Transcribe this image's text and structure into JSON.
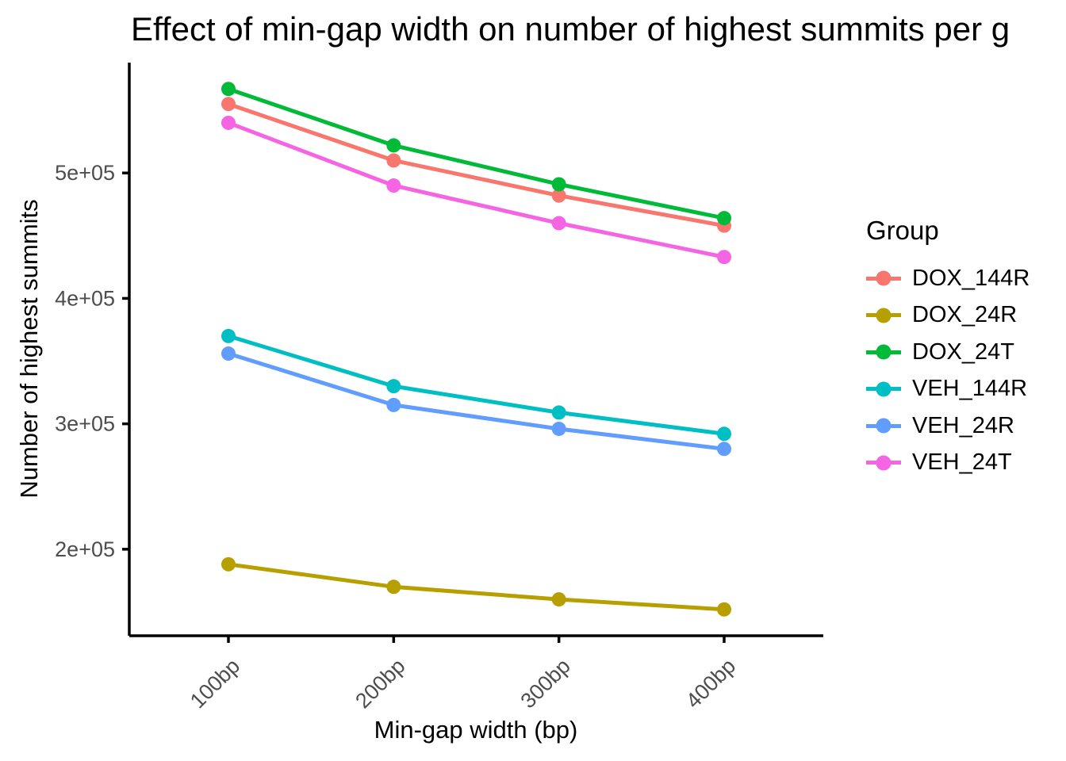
{
  "chart_data": {
    "type": "line",
    "title": "Effect of min-gap width on number of highest summits per g",
    "xlabel": "Min-gap width (bp)",
    "ylabel": "Number of highest summits",
    "categories": [
      "100bp",
      "200bp",
      "300bp",
      "400bp"
    ],
    "y_ticks": [
      200000,
      300000,
      400000,
      500000
    ],
    "y_tick_labels": [
      "2e+05",
      "3e+05",
      "4e+05",
      "5e+05"
    ],
    "ylim": [
      131000,
      588000
    ],
    "grid": false,
    "legend_position": "right",
    "series": [
      {
        "name": "DOX_144R",
        "color": "#F8766D",
        "values": [
          555000,
          510000,
          482000,
          458000
        ]
      },
      {
        "name": "DOX_24R",
        "color": "#B79F00",
        "values": [
          188000,
          170000,
          160000,
          152000
        ]
      },
      {
        "name": "DOX_24T",
        "color": "#00BA38",
        "values": [
          567000,
          522000,
          491000,
          464000
        ]
      },
      {
        "name": "VEH_144R",
        "color": "#00BFC4",
        "values": [
          370000,
          330000,
          309000,
          292000
        ]
      },
      {
        "name": "VEH_24R",
        "color": "#619CFF",
        "values": [
          356000,
          315000,
          296000,
          280000
        ]
      },
      {
        "name": "VEH_24T",
        "color": "#F564E3",
        "values": [
          540000,
          490000,
          460000,
          433000
        ]
      }
    ]
  },
  "legend": {
    "title": "Group"
  },
  "style": {
    "axis_line_color": "#000000",
    "tick_label_color": "#4D4D4D"
  }
}
